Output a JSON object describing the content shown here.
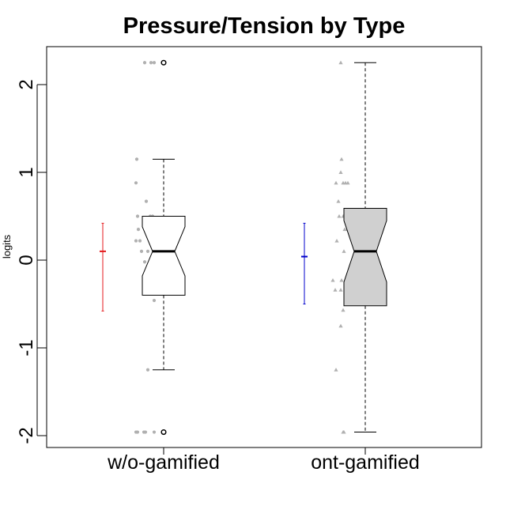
{
  "chart_data": {
    "type": "box",
    "title": "Pressure/Tension by Type",
    "xlabel": "",
    "ylabel": "logits",
    "ylim": [
      -2.1,
      2.45
    ],
    "yticks": [
      -2,
      -1,
      0,
      1,
      2
    ],
    "ytick_labels": [
      "-2",
      "-1",
      "0",
      "1",
      "2"
    ],
    "categories": [
      "w/o-gamified",
      "ont-gamified"
    ],
    "boxes": [
      {
        "name": "w/o-gamified",
        "fill": "#ffffff",
        "whisker_low": -1.25,
        "q1": -0.4,
        "median": 0.1,
        "q3": 0.5,
        "whisker_high": 1.15,
        "notch_low": -0.18,
        "notch_high": 0.38,
        "outliers": [
          2.25,
          -1.96
        ]
      },
      {
        "name": "ont-gamified",
        "fill": "#d0d0d0",
        "whisker_low": -1.96,
        "q1": -0.52,
        "median": 0.1,
        "q3": 0.59,
        "whisker_high": 2.25,
        "notch_low": -0.25,
        "notch_high": 0.45,
        "outliers": []
      }
    ],
    "mean_ci": [
      {
        "name": "w/o-gamified",
        "color": "#e41a1c",
        "mean": 0.1,
        "low": -0.58,
        "high": 0.42
      },
      {
        "name": "ont-gamified",
        "color": "#0000cc",
        "mean": 0.04,
        "low": -0.5,
        "high": 0.42
      }
    ],
    "jitter_points": [
      {
        "name": "w/o-gamified",
        "shape": "circle",
        "color": "#b0b0b0",
        "points": [
          {
            "dx": -0.24,
            "y": 2.25
          },
          {
            "dx": -0.16,
            "y": 2.25
          },
          {
            "dx": -0.12,
            "y": 2.25
          },
          {
            "dx": -0.34,
            "y": 1.15
          },
          {
            "dx": -0.35,
            "y": 0.88
          },
          {
            "dx": -0.22,
            "y": 0.67
          },
          {
            "dx": -0.33,
            "y": 0.5
          },
          {
            "dx": -0.17,
            "y": 0.5
          },
          {
            "dx": -0.14,
            "y": 0.5
          },
          {
            "dx": -0.32,
            "y": 0.35
          },
          {
            "dx": -0.35,
            "y": 0.22
          },
          {
            "dx": -0.3,
            "y": 0.22
          },
          {
            "dx": -0.14,
            "y": 0.22
          },
          {
            "dx": -0.28,
            "y": 0.1
          },
          {
            "dx": -0.2,
            "y": 0.1
          },
          {
            "dx": -0.24,
            "y": -0.02
          },
          {
            "dx": -0.18,
            "y": -0.13
          },
          {
            "dx": -0.16,
            "y": -0.13
          },
          {
            "dx": -0.12,
            "y": -0.23
          },
          {
            "dx": -0.13,
            "y": -0.34
          },
          {
            "dx": -0.12,
            "y": -0.46
          },
          {
            "dx": -0.2,
            "y": -1.25
          },
          {
            "dx": -0.35,
            "y": -1.96
          },
          {
            "dx": -0.33,
            "y": -1.96
          },
          {
            "dx": -0.25,
            "y": -1.96
          },
          {
            "dx": -0.23,
            "y": -1.96
          },
          {
            "dx": -0.12,
            "y": -1.96
          }
        ]
      },
      {
        "name": "ont-gamified",
        "shape": "triangle",
        "color": "#b0b0b0",
        "points": [
          {
            "dx": -0.31,
            "y": 2.25
          },
          {
            "dx": -0.3,
            "y": 1.15
          },
          {
            "dx": -0.31,
            "y": 1.0
          },
          {
            "dx": -0.37,
            "y": 0.88
          },
          {
            "dx": -0.28,
            "y": 0.88
          },
          {
            "dx": -0.25,
            "y": 0.88
          },
          {
            "dx": -0.22,
            "y": 0.88
          },
          {
            "dx": -0.34,
            "y": 0.67
          },
          {
            "dx": -0.33,
            "y": 0.5
          },
          {
            "dx": -0.28,
            "y": 0.5
          },
          {
            "dx": -0.21,
            "y": 0.5
          },
          {
            "dx": -0.26,
            "y": 0.35
          },
          {
            "dx": -0.22,
            "y": 0.35
          },
          {
            "dx": -0.36,
            "y": 0.22
          },
          {
            "dx": -0.27,
            "y": 0.1
          },
          {
            "dx": -0.41,
            "y": -0.23
          },
          {
            "dx": -0.3,
            "y": -0.23
          },
          {
            "dx": -0.38,
            "y": -0.34
          },
          {
            "dx": -0.31,
            "y": -0.34
          },
          {
            "dx": -0.25,
            "y": -0.46
          },
          {
            "dx": -0.28,
            "y": -0.57
          },
          {
            "dx": -0.31,
            "y": -0.75
          },
          {
            "dx": -0.37,
            "y": -1.25
          },
          {
            "dx": -0.28,
            "y": -1.96
          },
          {
            "dx": -0.27,
            "y": -1.96
          }
        ]
      }
    ],
    "grid": false
  }
}
